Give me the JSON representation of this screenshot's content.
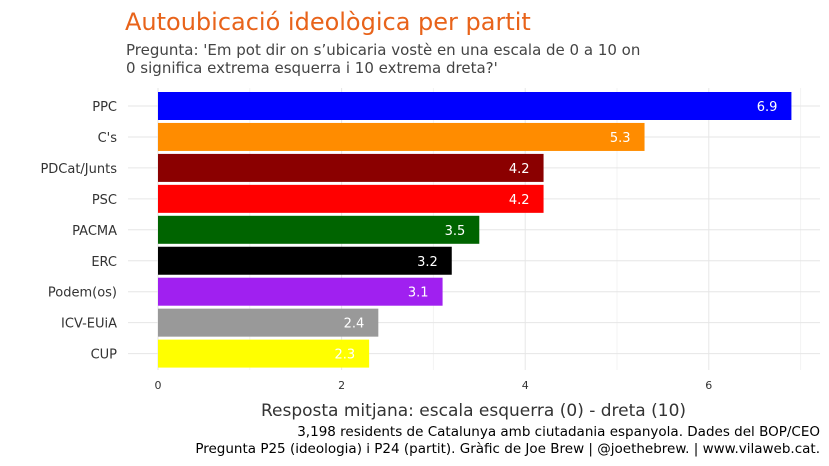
{
  "chart_data": {
    "type": "bar",
    "orientation": "horizontal",
    "title": "Autoubicació ideològica per partit",
    "subtitle_lines": [
      "Pregunta: 'Em pot dir on s’ubicaria vostè en una escala de 0 a 10 on",
      "0 significa extrema esquerra i 10 extrema dreta?'"
    ],
    "xlabel": "Resposta mitjana: escala esquerra (0) - dreta (10)",
    "caption_lines": [
      "3,198 residents de Catalunya amb ciutadania espanyola. Dades del BOP/CEO",
      "Pregunta P25 (ideologia) i P24 (partit). Gràfic de Joe Brew | @joethebrew. |  www.vilaweb.cat."
    ],
    "xlim": [
      0,
      7.2
    ],
    "xticks": [
      0,
      2,
      4,
      6
    ],
    "grid": true,
    "categories": [
      "PPC",
      "C's",
      "PDCat/Junts",
      "PSC",
      "PACMA",
      "ERC",
      "Podem(os)",
      "ICV-EUiA",
      "CUP"
    ],
    "values": [
      6.9,
      5.3,
      4.2,
      4.2,
      3.5,
      3.2,
      3.1,
      2.4,
      2.3
    ],
    "colors": [
      "#0000ff",
      "#ff8c00",
      "#8b0000",
      "#ff0000",
      "#006400",
      "#000000",
      "#a020f0",
      "#999999",
      "#ffff00"
    ]
  }
}
